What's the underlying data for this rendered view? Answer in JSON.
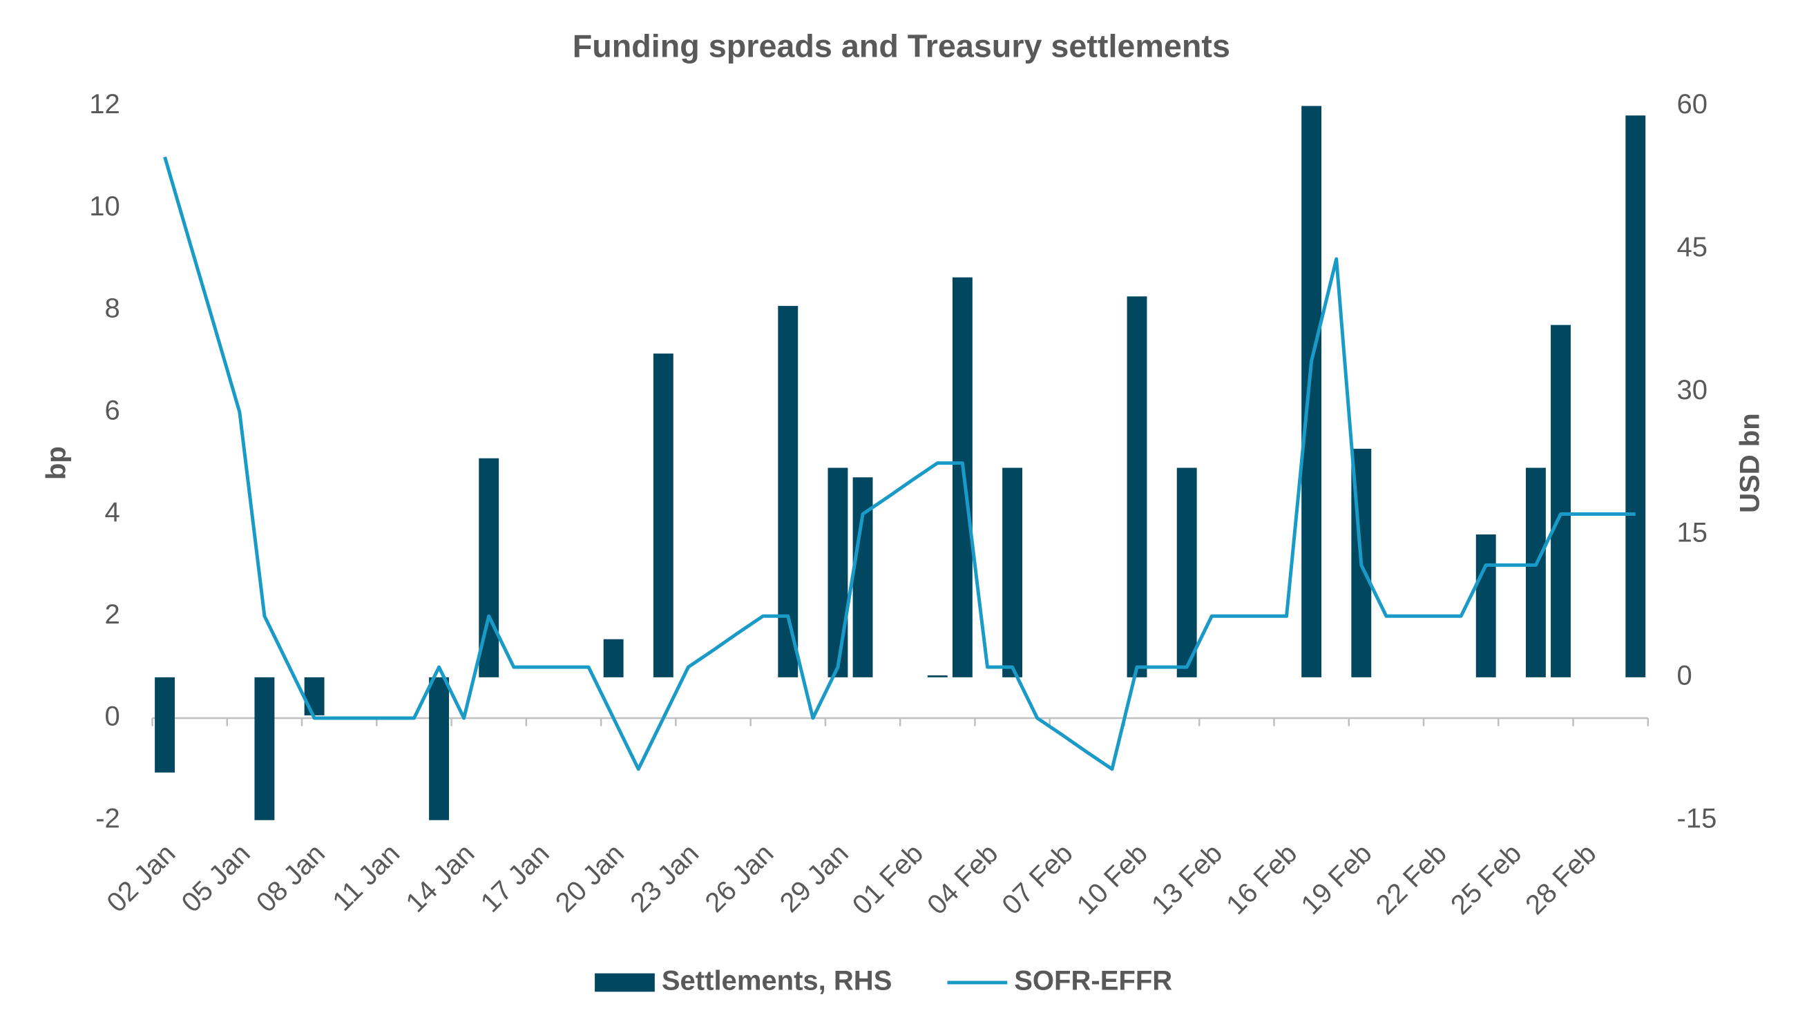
{
  "chart_data": {
    "type": "bar-line",
    "title": "Funding spreads and Treasury settlements",
    "y_label": "bp",
    "y2_label": "USD bn",
    "categories": [
      "02 Jan",
      null,
      null,
      "05 Jan",
      null,
      null,
      "08 Jan",
      null,
      null,
      "11 Jan",
      null,
      null,
      "14 Jan",
      null,
      null,
      "17 Jan",
      null,
      null,
      "20 Jan",
      null,
      null,
      "23 Jan",
      null,
      null,
      "26 Jan",
      null,
      null,
      "29 Jan",
      null,
      null,
      "01 Feb",
      null,
      null,
      "04 Feb",
      null,
      null,
      "07 Feb",
      null,
      null,
      "10 Feb",
      null,
      null,
      "13 Feb",
      null,
      null,
      "16 Feb",
      null,
      null,
      "19 Feb",
      null,
      null,
      "22 Feb",
      null,
      null,
      "25 Feb",
      null,
      null,
      "28 Feb",
      null,
      null
    ],
    "series": [
      {
        "name": "Settlements, RHS",
        "type": "bar",
        "axis": "y2",
        "color": "#00475f",
        "values": [
          -10,
          null,
          null,
          null,
          -15,
          null,
          -4,
          null,
          null,
          null,
          null,
          -15,
          null,
          23,
          null,
          null,
          null,
          null,
          4,
          null,
          34,
          null,
          null,
          null,
          null,
          39,
          null,
          22,
          21,
          null,
          null,
          0.2,
          42,
          null,
          22,
          null,
          null,
          null,
          null,
          40,
          null,
          22,
          null,
          null,
          null,
          null,
          60,
          null,
          24,
          null,
          null,
          null,
          null,
          15,
          null,
          22,
          37,
          null,
          null,
          59
        ]
      },
      {
        "name": "SOFR-EFFR",
        "type": "line",
        "color": "#1a9bc7",
        "values": [
          11,
          9.33,
          7.67,
          6,
          2,
          1,
          0,
          0,
          0,
          0,
          0,
          1,
          0,
          2,
          1,
          1,
          1,
          1,
          0,
          -1,
          0,
          1,
          1.33,
          1.67,
          2,
          2,
          0,
          1,
          4,
          4.33,
          4.67,
          5,
          5,
          1,
          1,
          0,
          -0.33,
          -0.67,
          -1,
          1,
          1,
          1,
          2,
          2,
          2,
          2,
          7,
          9,
          3,
          2,
          2,
          2,
          2,
          3,
          3,
          3,
          4,
          4,
          4,
          4
        ]
      }
    ],
    "ylim": [
      -2,
      12
    ],
    "yticks": [
      -2,
      0,
      2,
      4,
      6,
      8,
      10,
      12
    ],
    "y2lim": [
      -15,
      60
    ],
    "y2ticks": [
      -15,
      0,
      15,
      30,
      45,
      60
    ],
    "legend": "bottom"
  }
}
